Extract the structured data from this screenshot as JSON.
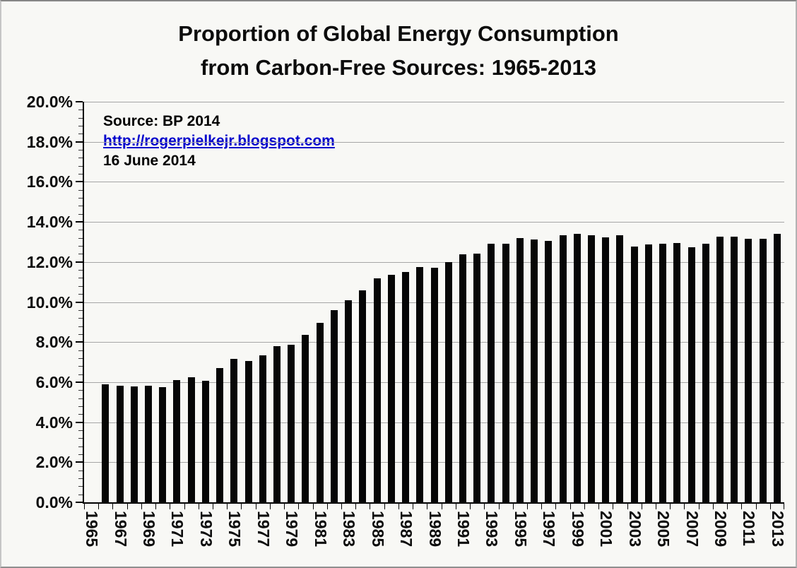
{
  "title": {
    "line1": "Proportion of Global Energy Consumption",
    "line2": "from Carbon-Free Sources:  1965-2013"
  },
  "annotation": {
    "source": "Source: BP 2014",
    "url": "http://rogerpielkejr.blogspot.com",
    "date": "16 June 2014"
  },
  "y_axis": {
    "min": 0,
    "max": 20,
    "major_step": 2,
    "minor_step": 0.4,
    "labels": [
      "0.0%",
      "2.0%",
      "4.0%",
      "6.0%",
      "8.0%",
      "10.0%",
      "12.0%",
      "14.0%",
      "16.0%",
      "18.0%",
      "20.0%"
    ]
  },
  "x_axis": {
    "tick_label_years": [
      "1965",
      "1967",
      "1969",
      "1971",
      "1973",
      "1975",
      "1977",
      "1979",
      "1981",
      "1983",
      "1985",
      "1987",
      "1989",
      "1991",
      "1993",
      "1995",
      "1997",
      "1999",
      "2001",
      "2003",
      "2005",
      "2007",
      "2009",
      "2011",
      "2013"
    ]
  },
  "colors": {
    "bar": "#060606",
    "gridline": "#a6a6a6",
    "axis": "#000000",
    "link_blue": "#0000cc",
    "background": "#f8f8f5",
    "text": "#0d0d0d"
  },
  "chart_data": {
    "type": "bar",
    "title": "Proportion of Global Energy Consumption from Carbon-Free Sources: 1965-2013",
    "xlabel": "",
    "ylabel": "",
    "units": "percent",
    "ylim": [
      0,
      20
    ],
    "grid": true,
    "legend": false,
    "categories": [
      1965,
      1966,
      1967,
      1968,
      1969,
      1970,
      1971,
      1972,
      1973,
      1974,
      1975,
      1976,
      1977,
      1978,
      1979,
      1980,
      1981,
      1982,
      1983,
      1984,
      1985,
      1986,
      1987,
      1988,
      1989,
      1990,
      1991,
      1992,
      1993,
      1994,
      1995,
      1996,
      1997,
      1998,
      1999,
      2000,
      2001,
      2002,
      2003,
      2004,
      2005,
      2006,
      2007,
      2008,
      2009,
      2010,
      2011,
      2012,
      2013
    ],
    "values": [
      null,
      5.9,
      5.82,
      5.8,
      5.82,
      5.75,
      6.1,
      6.25,
      6.06,
      6.7,
      7.17,
      7.05,
      7.33,
      7.78,
      7.86,
      8.37,
      8.97,
      9.58,
      10.1,
      10.57,
      11.19,
      11.36,
      11.5,
      11.73,
      11.72,
      12.01,
      12.37,
      12.41,
      12.91,
      12.9,
      13.19,
      13.11,
      13.05,
      13.33,
      13.41,
      13.33,
      13.24,
      13.32,
      12.76,
      12.88,
      12.91,
      12.94,
      12.74,
      12.91,
      13.26,
      13.25,
      13.14,
      13.14,
      13.42
    ]
  }
}
